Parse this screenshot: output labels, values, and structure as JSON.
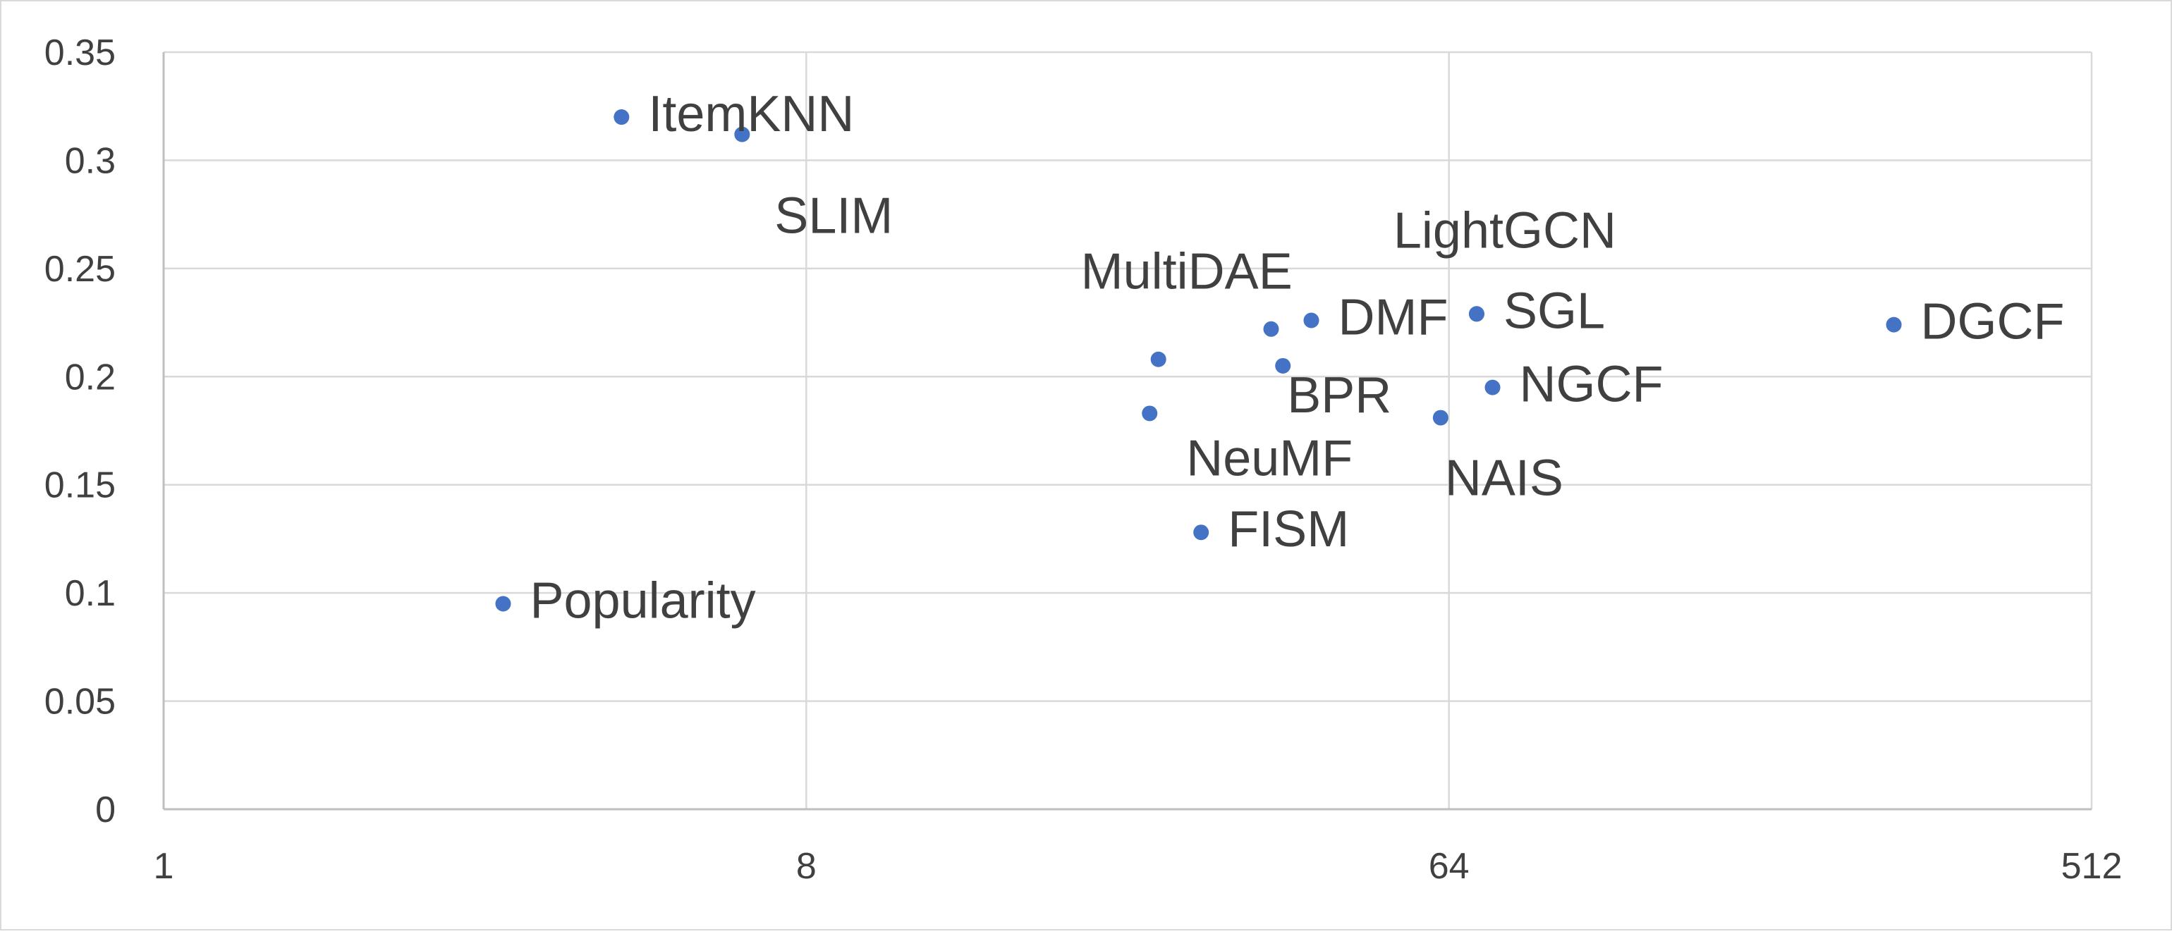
{
  "chart_data": {
    "type": "scatter",
    "title": "",
    "xlabel": "",
    "ylabel": "",
    "x_scale": "log2",
    "xlim": [
      1,
      512
    ],
    "ylim": [
      0,
      0.35
    ],
    "x_ticks": [
      "1",
      "8",
      "64",
      "512"
    ],
    "y_ticks": [
      "0",
      "0.05",
      "0.1",
      "0.15",
      "0.2",
      "0.25",
      "0.3",
      "0.35"
    ],
    "grid": true,
    "legend": "none",
    "marker_color": "#4472C4",
    "gridline_color": "#D9D9D9",
    "text_color": "#404040",
    "series": [
      {
        "points": [
          {
            "label": "ItemKNN",
            "x": 4.4,
            "y": 0.32,
            "label_pos": "right"
          },
          {
            "label": "SLIM",
            "x": 6.5,
            "y": 0.312,
            "label_pos": "below"
          },
          {
            "label": "Popularity",
            "x": 3.0,
            "y": 0.095,
            "label_pos": "right"
          },
          {
            "label": "MultiDAE",
            "x": 25.0,
            "y": 0.208,
            "label_pos": "above"
          },
          {
            "label": "NeuMF",
            "x": 24.3,
            "y": 0.183,
            "label_pos": "below"
          },
          {
            "label": "FISM",
            "x": 28.7,
            "y": 0.128,
            "label_pos": "right"
          },
          {
            "label": "DMF",
            "x": 41.0,
            "y": 0.226,
            "label_pos": "right"
          },
          {
            "label": "BPR",
            "x": 37.4,
            "y": 0.205,
            "label_pos": "below"
          },
          {
            "label": "",
            "x": 36.0,
            "y": 0.222,
            "label_pos": "right"
          },
          {
            "label": "LightGCN",
            "x": 70.0,
            "y": 0.229,
            "label_pos": "above"
          },
          {
            "label": "SGL",
            "x": 70.0,
            "y": 0.229,
            "label_pos": "right"
          },
          {
            "label": "NGCF",
            "x": 73.7,
            "y": 0.195,
            "label_pos": "right"
          },
          {
            "label": "NAIS",
            "x": 62.3,
            "y": 0.181,
            "label_pos": "below"
          },
          {
            "label": "DGCF",
            "x": 270.0,
            "y": 0.224,
            "label_pos": "right"
          }
        ]
      }
    ]
  }
}
